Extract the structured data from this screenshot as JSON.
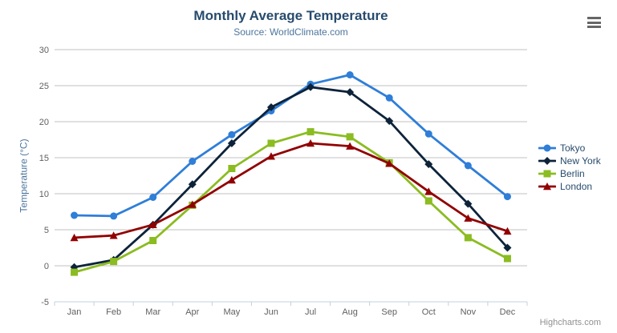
{
  "chart_data": {
    "type": "line",
    "title": "Monthly Average Temperature",
    "subtitle": "Source: WorldClimate.com",
    "xlabel": "",
    "ylabel": "Temperature (°C)",
    "ylim": [
      -5,
      30
    ],
    "yticks": [
      -5,
      0,
      5,
      10,
      15,
      20,
      25,
      30
    ],
    "grid": true,
    "legend_position": "right",
    "categories": [
      "Jan",
      "Feb",
      "Mar",
      "Apr",
      "May",
      "Jun",
      "Jul",
      "Aug",
      "Sep",
      "Oct",
      "Nov",
      "Dec"
    ],
    "series": [
      {
        "name": "Tokyo",
        "color": "#2f7ed8",
        "marker": "circle",
        "values": [
          7.0,
          6.9,
          9.5,
          14.5,
          18.2,
          21.5,
          25.2,
          26.5,
          23.3,
          18.3,
          13.9,
          9.6
        ]
      },
      {
        "name": "New York",
        "color": "#0d233a",
        "marker": "diamond",
        "values": [
          -0.2,
          0.8,
          5.7,
          11.3,
          17.0,
          22.0,
          24.8,
          24.1,
          20.1,
          14.1,
          8.6,
          2.5
        ]
      },
      {
        "name": "Berlin",
        "color": "#8bbc21",
        "marker": "square",
        "values": [
          -0.9,
          0.6,
          3.5,
          8.4,
          13.5,
          17.0,
          18.6,
          17.9,
          14.3,
          9.0,
          3.9,
          1.0
        ]
      },
      {
        "name": "London",
        "color": "#910000",
        "marker": "triangle",
        "values": [
          3.9,
          4.2,
          5.7,
          8.5,
          11.9,
          15.2,
          17.0,
          16.6,
          14.2,
          10.3,
          6.6,
          4.8
        ]
      }
    ]
  },
  "credits": {
    "label": "Highcharts.com"
  },
  "menu": {
    "icon": "hamburger-icon"
  },
  "colors": {
    "title": "#274b6d",
    "subtitle": "#4d759e",
    "axis_title": "#4d759e",
    "tick_label": "#606060",
    "gridline": "#c0c0c0",
    "axis_line": "#c0d0e0",
    "legend_text": "#274b6d",
    "credits": "#909090",
    "menu_icon": "#666666",
    "background": "#ffffff"
  }
}
